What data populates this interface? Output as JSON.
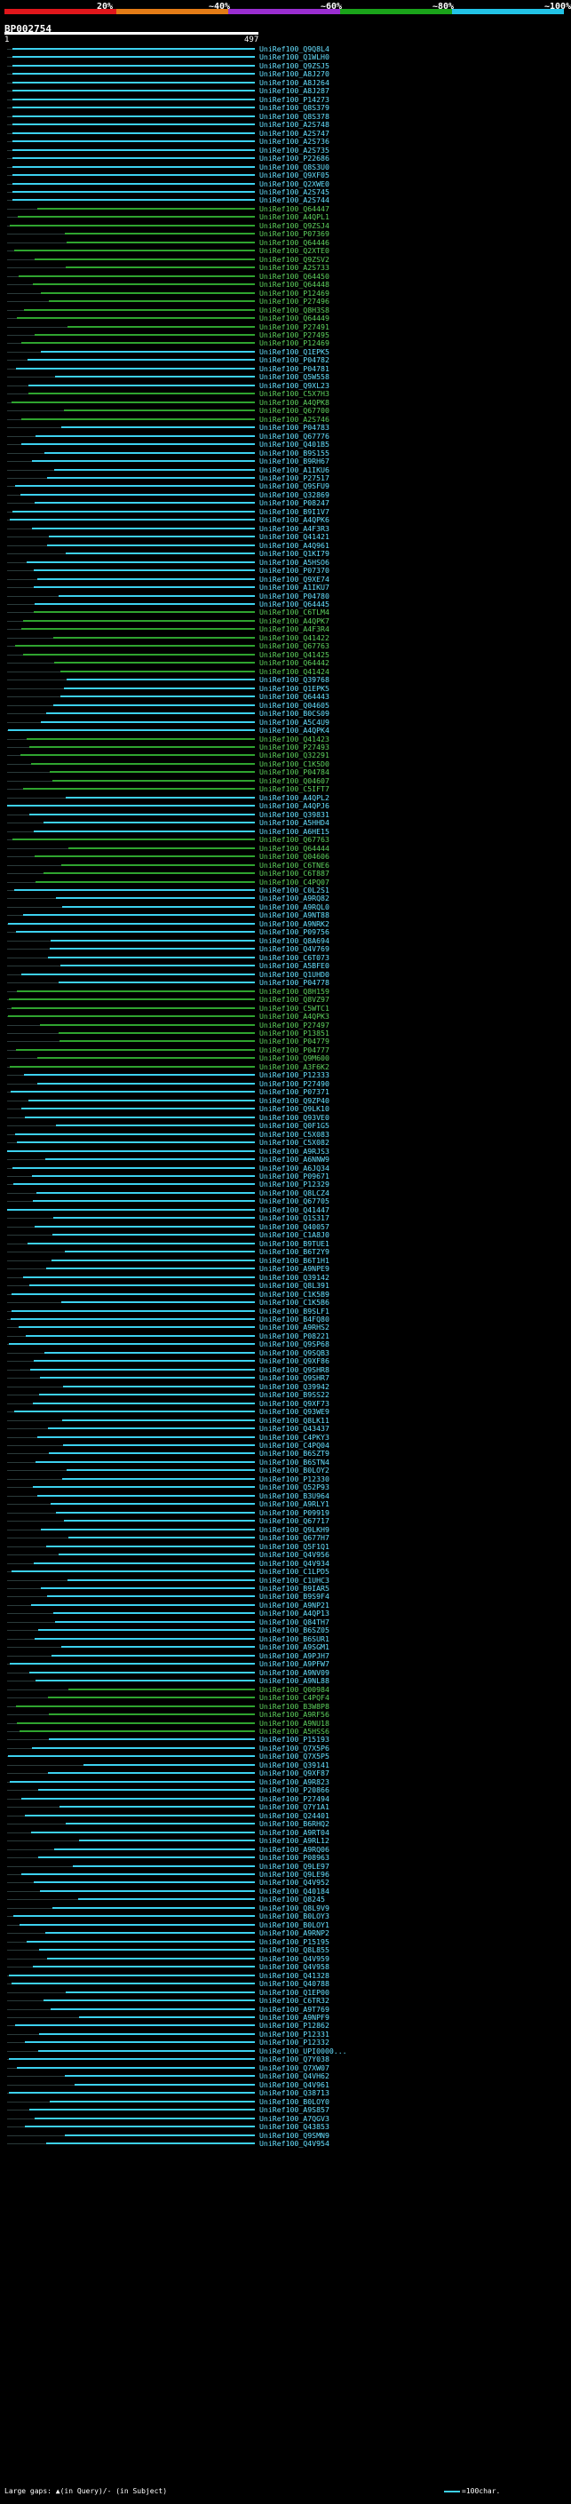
{
  "legend": {
    "labels": [
      "20%",
      "~40%",
      "~60%",
      "~80%",
      "~100%"
    ],
    "colors": [
      "#e0161b",
      "#e37b16",
      "#9a2ed1",
      "#1aa31a",
      "#22c3e6"
    ]
  },
  "query": {
    "id": "BP002754",
    "start": "1",
    "end": "497"
  },
  "colors": {
    "cyan": "#3dd1ef",
    "green": "#2fa42f",
    "arrow": "#dddddd"
  },
  "hits": [
    {
      "id": "UniRef100_Q9Q8L4",
      "c": "c"
    },
    {
      "id": "UniRef100_Q1WLH0",
      "c": "c"
    },
    {
      "id": "UniRef100_Q9ZSJ5",
      "c": "c"
    },
    {
      "id": "UniRef100_A8J270",
      "c": "c"
    },
    {
      "id": "UniRef100_A8J264",
      "c": "c"
    },
    {
      "id": "UniRef100_A8J287",
      "c": "c"
    },
    {
      "id": "UniRef100_P14273",
      "c": "c"
    },
    {
      "id": "UniRef100_Q8S379",
      "c": "c"
    },
    {
      "id": "UniRef100_Q8S378",
      "c": "c"
    },
    {
      "id": "UniRef100_A2S748",
      "c": "c"
    },
    {
      "id": "UniRef100_A2S747",
      "c": "c"
    },
    {
      "id": "UniRef100_A2S736",
      "c": "c"
    },
    {
      "id": "UniRef100_A2S735",
      "c": "c"
    },
    {
      "id": "UniRef100_P22686",
      "c": "c"
    },
    {
      "id": "UniRef100_Q8S3U0",
      "c": "c"
    },
    {
      "id": "UniRef100_Q9XF05",
      "c": "c"
    },
    {
      "id": "UniRef100_Q2XWE0",
      "c": "c"
    },
    {
      "id": "UniRef100_A2S745",
      "c": "c"
    },
    {
      "id": "UniRef100_A2S744",
      "c": "c"
    },
    {
      "id": "UniRef100_Q64447",
      "c": "g"
    },
    {
      "id": "UniRef100_A4QPL1",
      "c": "g"
    },
    {
      "id": "UniRef100_Q9ZSJ4",
      "c": "g"
    },
    {
      "id": "UniRef100_P07369",
      "c": "g"
    },
    {
      "id": "UniRef100_Q64446",
      "c": "g"
    },
    {
      "id": "UniRef100_Q2XTE0",
      "c": "g"
    },
    {
      "id": "UniRef100_Q9ZSV2",
      "c": "g"
    },
    {
      "id": "UniRef100_A2S733",
      "c": "g"
    },
    {
      "id": "UniRef100_Q64450",
      "c": "g"
    },
    {
      "id": "UniRef100_Q64448",
      "c": "g"
    },
    {
      "id": "UniRef100_P12469",
      "c": "g"
    },
    {
      "id": "UniRef100_P27496",
      "c": "g"
    },
    {
      "id": "UniRef100_Q8H3S8",
      "c": "g"
    },
    {
      "id": "UniRef100_Q64449",
      "c": "g"
    },
    {
      "id": "UniRef100_P27491",
      "c": "g"
    },
    {
      "id": "UniRef100_P27495",
      "c": "g"
    },
    {
      "id": "UniRef100_P12469",
      "c": "g"
    },
    {
      "id": "UniRef100_Q1EPK5",
      "c": "c"
    },
    {
      "id": "UniRef100_P04782",
      "c": "c"
    },
    {
      "id": "UniRef100_P04781",
      "c": "c"
    },
    {
      "id": "UniRef100_Q5W558",
      "c": "c"
    },
    {
      "id": "UniRef100_Q9XL23",
      "c": "c"
    },
    {
      "id": "UniRef100_C5X7H3",
      "c": "g"
    },
    {
      "id": "UniRef100_A4QPK8",
      "c": "g"
    },
    {
      "id": "UniRef100_Q67700",
      "c": "g"
    },
    {
      "id": "UniRef100_A2S746",
      "c": "g"
    },
    {
      "id": "UniRef100_P04783",
      "c": "c"
    },
    {
      "id": "UniRef100_Q67776",
      "c": "c"
    },
    {
      "id": "UniRef100_Q401B5",
      "c": "c"
    },
    {
      "id": "UniRef100_B9S155",
      "c": "c"
    },
    {
      "id": "UniRef100_B9RH67",
      "c": "c"
    },
    {
      "id": "UniRef100_A1IKU6",
      "c": "c"
    },
    {
      "id": "UniRef100_P27517",
      "c": "c"
    },
    {
      "id": "UniRef100_Q9SFU9",
      "c": "c"
    },
    {
      "id": "UniRef100_Q32869",
      "c": "c"
    },
    {
      "id": "UniRef100_P08247",
      "c": "c"
    },
    {
      "id": "UniRef100_B9I1V7",
      "c": "c"
    },
    {
      "id": "UniRef100_A4QPK6",
      "c": "c"
    },
    {
      "id": "UniRef100_A4F3R3",
      "c": "c"
    },
    {
      "id": "UniRef100_Q41421",
      "c": "c"
    },
    {
      "id": "UniRef100_A4Q961",
      "c": "c"
    },
    {
      "id": "UniRef100_Q1KI79",
      "c": "c"
    },
    {
      "id": "UniRef100_A5HSO6",
      "c": "c"
    },
    {
      "id": "UniRef100_P07370",
      "c": "c"
    },
    {
      "id": "UniRef100_Q9XE74",
      "c": "c"
    },
    {
      "id": "UniRef100_A1IKU7",
      "c": "c"
    },
    {
      "id": "UniRef100_P04780",
      "c": "c"
    },
    {
      "id": "UniRef100_Q64445",
      "c": "c"
    },
    {
      "id": "UniRef100_C6TLM4",
      "c": "g"
    },
    {
      "id": "UniRef100_A4QPK7",
      "c": "g"
    },
    {
      "id": "UniRef100_A4F3R4",
      "c": "g"
    },
    {
      "id": "UniRef100_Q41422",
      "c": "g"
    },
    {
      "id": "UniRef100_Q67763",
      "c": "g"
    },
    {
      "id": "UniRef100_Q41425",
      "c": "g"
    },
    {
      "id": "UniRef100_Q64442",
      "c": "g"
    },
    {
      "id": "UniRef100_Q41424",
      "c": "g"
    },
    {
      "id": "UniRef100_Q39768",
      "c": "c"
    },
    {
      "id": "UniRef100_Q1EPK5",
      "c": "c"
    },
    {
      "id": "UniRef100_Q64443",
      "c": "c"
    },
    {
      "id": "UniRef100_Q04605",
      "c": "c"
    },
    {
      "id": "UniRef100_B0CS09",
      "c": "c"
    },
    {
      "id": "UniRef100_A5C4U9",
      "c": "c"
    },
    {
      "id": "UniRef100_A4QPK4",
      "c": "c"
    },
    {
      "id": "UniRef100_Q41423",
      "c": "g"
    },
    {
      "id": "UniRef100_P27493",
      "c": "g"
    },
    {
      "id": "UniRef100_Q32291",
      "c": "g"
    },
    {
      "id": "UniRef100_C1K5D0",
      "c": "g"
    },
    {
      "id": "UniRef100_P04784",
      "c": "g"
    },
    {
      "id": "UniRef100_Q04607",
      "c": "g"
    },
    {
      "id": "UniRef100_C5IFT7",
      "c": "g"
    },
    {
      "id": "UniRef100_A4QPL2",
      "c": "c"
    },
    {
      "id": "UniRef100_A4QPJ6",
      "c": "c"
    },
    {
      "id": "UniRef100_Q39831",
      "c": "c"
    },
    {
      "id": "UniRef100_A5HHD4",
      "c": "c"
    },
    {
      "id": "UniRef100_A6HE15",
      "c": "c"
    },
    {
      "id": "UniRef100_Q67763",
      "c": "g"
    },
    {
      "id": "UniRef100_Q64444",
      "c": "g"
    },
    {
      "id": "UniRef100_Q04606",
      "c": "g"
    },
    {
      "id": "UniRef100_C6TNE6",
      "c": "g"
    },
    {
      "id": "UniRef100_C6T887",
      "c": "g"
    },
    {
      "id": "UniRef100_C4PQ07",
      "c": "g"
    },
    {
      "id": "UniRef100_C0L2S1",
      "c": "c"
    },
    {
      "id": "UniRef100_A9RQ82",
      "c": "c"
    },
    {
      "id": "UniRef100_A9RQL0",
      "c": "c"
    },
    {
      "id": "UniRef100_A9NT88",
      "c": "c"
    },
    {
      "id": "UniRef100_A9NRK2",
      "c": "c"
    },
    {
      "id": "UniRef100_P09756",
      "c": "c"
    },
    {
      "id": "UniRef100_Q8A694",
      "c": "c"
    },
    {
      "id": "UniRef100_Q4V769",
      "c": "c"
    },
    {
      "id": "UniRef100_C6T073",
      "c": "c"
    },
    {
      "id": "UniRef100_A5BFE0",
      "c": "c"
    },
    {
      "id": "UniRef100_Q1UHD0",
      "c": "c"
    },
    {
      "id": "UniRef100_P04778",
      "c": "c"
    },
    {
      "id": "UniRef100_Q8H159",
      "c": "g"
    },
    {
      "id": "UniRef100_Q8VZ97",
      "c": "g"
    },
    {
      "id": "UniRef100_C5WTC1",
      "c": "g"
    },
    {
      "id": "UniRef100_A4QPK3",
      "c": "g"
    },
    {
      "id": "UniRef100_P27497",
      "c": "g"
    },
    {
      "id": "UniRef100_P13851",
      "c": "g"
    },
    {
      "id": "UniRef100_P04779",
      "c": "g"
    },
    {
      "id": "UniRef100_P04777",
      "c": "g"
    },
    {
      "id": "UniRef100_Q9M600",
      "c": "g"
    },
    {
      "id": "UniRef100_A3F6K2",
      "c": "g"
    },
    {
      "id": "UniRef100_P12333",
      "c": "c"
    },
    {
      "id": "UniRef100_P27490",
      "c": "c"
    },
    {
      "id": "UniRef100_P07371",
      "c": "c"
    },
    {
      "id": "UniRef100_Q9ZP40",
      "c": "c"
    },
    {
      "id": "UniRef100_Q9LK10",
      "c": "c"
    },
    {
      "id": "UniRef100_Q93VE0",
      "c": "c"
    },
    {
      "id": "UniRef100_Q0F1G5",
      "c": "c"
    },
    {
      "id": "UniRef100_C5X083",
      "c": "c"
    },
    {
      "id": "UniRef100_C5X082",
      "c": "c"
    },
    {
      "id": "UniRef100_A9RJS3",
      "c": "c"
    },
    {
      "id": "UniRef100_A6NNW9",
      "c": "c"
    },
    {
      "id": "UniRef100_A6JQ34",
      "c": "c"
    },
    {
      "id": "UniRef100_P09671",
      "c": "c"
    },
    {
      "id": "UniRef100_P12329",
      "c": "c"
    },
    {
      "id": "UniRef100_Q8LCZ4",
      "c": "c"
    },
    {
      "id": "UniRef100_Q67705",
      "c": "c"
    },
    {
      "id": "UniRef100_Q41447",
      "c": "c"
    },
    {
      "id": "UniRef100_Q1S317",
      "c": "c"
    },
    {
      "id": "UniRef100_Q40057",
      "c": "c"
    },
    {
      "id": "UniRef100_C1A8J0",
      "c": "c"
    },
    {
      "id": "UniRef100_B9TUE1",
      "c": "c"
    },
    {
      "id": "UniRef100_B6T2Y9",
      "c": "c"
    },
    {
      "id": "UniRef100_B6T1H1",
      "c": "c"
    },
    {
      "id": "UniRef100_A9NPE9",
      "c": "c"
    },
    {
      "id": "UniRef100_Q39142",
      "c": "c"
    },
    {
      "id": "UniRef100_Q8L391",
      "c": "c"
    },
    {
      "id": "UniRef100_C1K5B9",
      "c": "c"
    },
    {
      "id": "UniRef100_C1K5B6",
      "c": "c"
    },
    {
      "id": "UniRef100_B9SLF1",
      "c": "c"
    },
    {
      "id": "UniRef100_B4FQ80",
      "c": "c"
    },
    {
      "id": "UniRef100_A9RHS2",
      "c": "c"
    },
    {
      "id": "UniRef100_P08221",
      "c": "c"
    },
    {
      "id": "UniRef100_Q9SP68",
      "c": "c"
    },
    {
      "id": "UniRef100_Q9SQB3",
      "c": "c"
    },
    {
      "id": "UniRef100_Q9XF86",
      "c": "c"
    },
    {
      "id": "UniRef100_Q9SHR8",
      "c": "c"
    },
    {
      "id": "UniRef100_Q9SHR7",
      "c": "c"
    },
    {
      "id": "UniRef100_Q39942",
      "c": "c"
    },
    {
      "id": "UniRef100_B9SS22",
      "c": "c"
    },
    {
      "id": "UniRef100_Q9XF73",
      "c": "c"
    },
    {
      "id": "UniRef100_Q93WE9",
      "c": "c"
    },
    {
      "id": "UniRef100_Q8LK11",
      "c": "c"
    },
    {
      "id": "UniRef100_Q43437",
      "c": "c"
    },
    {
      "id": "UniRef100_C4PKY3",
      "c": "c"
    },
    {
      "id": "UniRef100_C4PQ04",
      "c": "c"
    },
    {
      "id": "UniRef100_B6SZT9",
      "c": "c"
    },
    {
      "id": "UniRef100_B6STN4",
      "c": "c"
    },
    {
      "id": "UniRef100_B0LOY2",
      "c": "c"
    },
    {
      "id": "UniRef100_P12330",
      "c": "c"
    },
    {
      "id": "UniRef100_Q52P93",
      "c": "c"
    },
    {
      "id": "UniRef100_B3U964",
      "c": "c"
    },
    {
      "id": "UniRef100_A9RLY1",
      "c": "c"
    },
    {
      "id": "UniRef100_P09919",
      "c": "c"
    },
    {
      "id": "UniRef100_Q67717",
      "c": "c"
    },
    {
      "id": "UniRef100_Q9LKH9",
      "c": "c"
    },
    {
      "id": "UniRef100_Q677H7",
      "c": "c"
    },
    {
      "id": "UniRef100_Q5F1Q1",
      "c": "c"
    },
    {
      "id": "UniRef100_Q4V956",
      "c": "c"
    },
    {
      "id": "UniRef100_Q4V934",
      "c": "c"
    },
    {
      "id": "UniRef100_C1LPD5",
      "c": "c"
    },
    {
      "id": "UniRef100_C1UHC3",
      "c": "c"
    },
    {
      "id": "UniRef100_B9IAR5",
      "c": "c"
    },
    {
      "id": "UniRef100_B9S9F4",
      "c": "c"
    },
    {
      "id": "UniRef100_A9NP21",
      "c": "c"
    },
    {
      "id": "UniRef100_A4QP13",
      "c": "c"
    },
    {
      "id": "UniRef100_Q84TH7",
      "c": "c"
    },
    {
      "id": "UniRef100_B6SZ05",
      "c": "c"
    },
    {
      "id": "UniRef100_B6SUR1",
      "c": "c"
    },
    {
      "id": "UniRef100_A9SGM1",
      "c": "c"
    },
    {
      "id": "UniRef100_A9PJH7",
      "c": "c"
    },
    {
      "id": "UniRef100_A9PFW7",
      "c": "c"
    },
    {
      "id": "UniRef100_A9NV09",
      "c": "c"
    },
    {
      "id": "UniRef100_A9NL88",
      "c": "c"
    },
    {
      "id": "UniRef100_Q00984",
      "c": "g"
    },
    {
      "id": "UniRef100_C4PQF4",
      "c": "g"
    },
    {
      "id": "UniRef100_B3W8P8",
      "c": "g"
    },
    {
      "id": "UniRef100_A9RF56",
      "c": "g"
    },
    {
      "id": "UniRef100_A9NU18",
      "c": "g"
    },
    {
      "id": "UniRef100_A5HSS6",
      "c": "g"
    },
    {
      "id": "UniRef100_P15193",
      "c": "c"
    },
    {
      "id": "UniRef100_Q7X5P6",
      "c": "c"
    },
    {
      "id": "UniRef100_Q7X5P5",
      "c": "c"
    },
    {
      "id": "UniRef100_Q39141",
      "c": "c"
    },
    {
      "id": "UniRef100_Q9XF87",
      "c": "c"
    },
    {
      "id": "UniRef100_A9R823",
      "c": "c"
    },
    {
      "id": "UniRef100_P20866",
      "c": "c"
    },
    {
      "id": "UniRef100_P27494",
      "c": "c"
    },
    {
      "id": "UniRef100_Q7Y1A1",
      "c": "c"
    },
    {
      "id": "UniRef100_Q24401",
      "c": "c"
    },
    {
      "id": "UniRef100_B6RHQ2",
      "c": "c"
    },
    {
      "id": "UniRef100_A9RT04",
      "c": "c"
    },
    {
      "id": "UniRef100_A9RL12",
      "c": "c"
    },
    {
      "id": "UniRef100_A9RQ06",
      "c": "c"
    },
    {
      "id": "UniRef100_P08963",
      "c": "c"
    },
    {
      "id": "UniRef100_Q9LE97",
      "c": "c"
    },
    {
      "id": "UniRef100_Q9LE96",
      "c": "c"
    },
    {
      "id": "UniRef100_Q4V952",
      "c": "c"
    },
    {
      "id": "UniRef100_Q40184",
      "c": "c"
    },
    {
      "id": "UniRef100_Q8245",
      "c": "c"
    },
    {
      "id": "UniRef100_Q8L9V9",
      "c": "c"
    },
    {
      "id": "UniRef100_B0LOY3",
      "c": "c"
    },
    {
      "id": "UniRef100_B0LOY1",
      "c": "c"
    },
    {
      "id": "UniRef100_A9RNP2",
      "c": "c"
    },
    {
      "id": "UniRef100_P15195",
      "c": "c"
    },
    {
      "id": "UniRef100_Q8L855",
      "c": "c"
    },
    {
      "id": "UniRef100_Q4V959",
      "c": "c"
    },
    {
      "id": "UniRef100_Q4V958",
      "c": "c"
    },
    {
      "id": "UniRef100_Q41328",
      "c": "c"
    },
    {
      "id": "UniRef100_Q40788",
      "c": "c"
    },
    {
      "id": "UniRef100_Q1EP00",
      "c": "c"
    },
    {
      "id": "UniRef100_C6TR32",
      "c": "c"
    },
    {
      "id": "UniRef100_A9T769",
      "c": "c"
    },
    {
      "id": "UniRef100_A9NPF9",
      "c": "c"
    },
    {
      "id": "UniRef100_P12862",
      "c": "c"
    },
    {
      "id": "UniRef100_P12331",
      "c": "c"
    },
    {
      "id": "UniRef100_P12332",
      "c": "c"
    },
    {
      "id": "UniRef100_UPI0000...",
      "c": "c"
    },
    {
      "id": "UniRef100_Q7Y038",
      "c": "c"
    },
    {
      "id": "UniRef100_Q7XW07",
      "c": "c"
    },
    {
      "id": "UniRef100_Q4VH62",
      "c": "c"
    },
    {
      "id": "UniRef100_Q4V961",
      "c": "c"
    },
    {
      "id": "UniRef100_Q38713",
      "c": "c"
    },
    {
      "id": "UniRef100_B0LOY0",
      "c": "c"
    },
    {
      "id": "UniRef100_A9S857",
      "c": "c"
    },
    {
      "id": "UniRef100_A7QGV3",
      "c": "c"
    },
    {
      "id": "UniRef100_Q43853",
      "c": "c"
    },
    {
      "id": "UniRef100_Q9SMN9",
      "c": "c"
    },
    {
      "id": "UniRef100_Q4V954",
      "c": "c"
    }
  ],
  "footer": {
    "text": "Large gaps: ▲(in Query)/- (in Subject)",
    "key": "=100char."
  }
}
